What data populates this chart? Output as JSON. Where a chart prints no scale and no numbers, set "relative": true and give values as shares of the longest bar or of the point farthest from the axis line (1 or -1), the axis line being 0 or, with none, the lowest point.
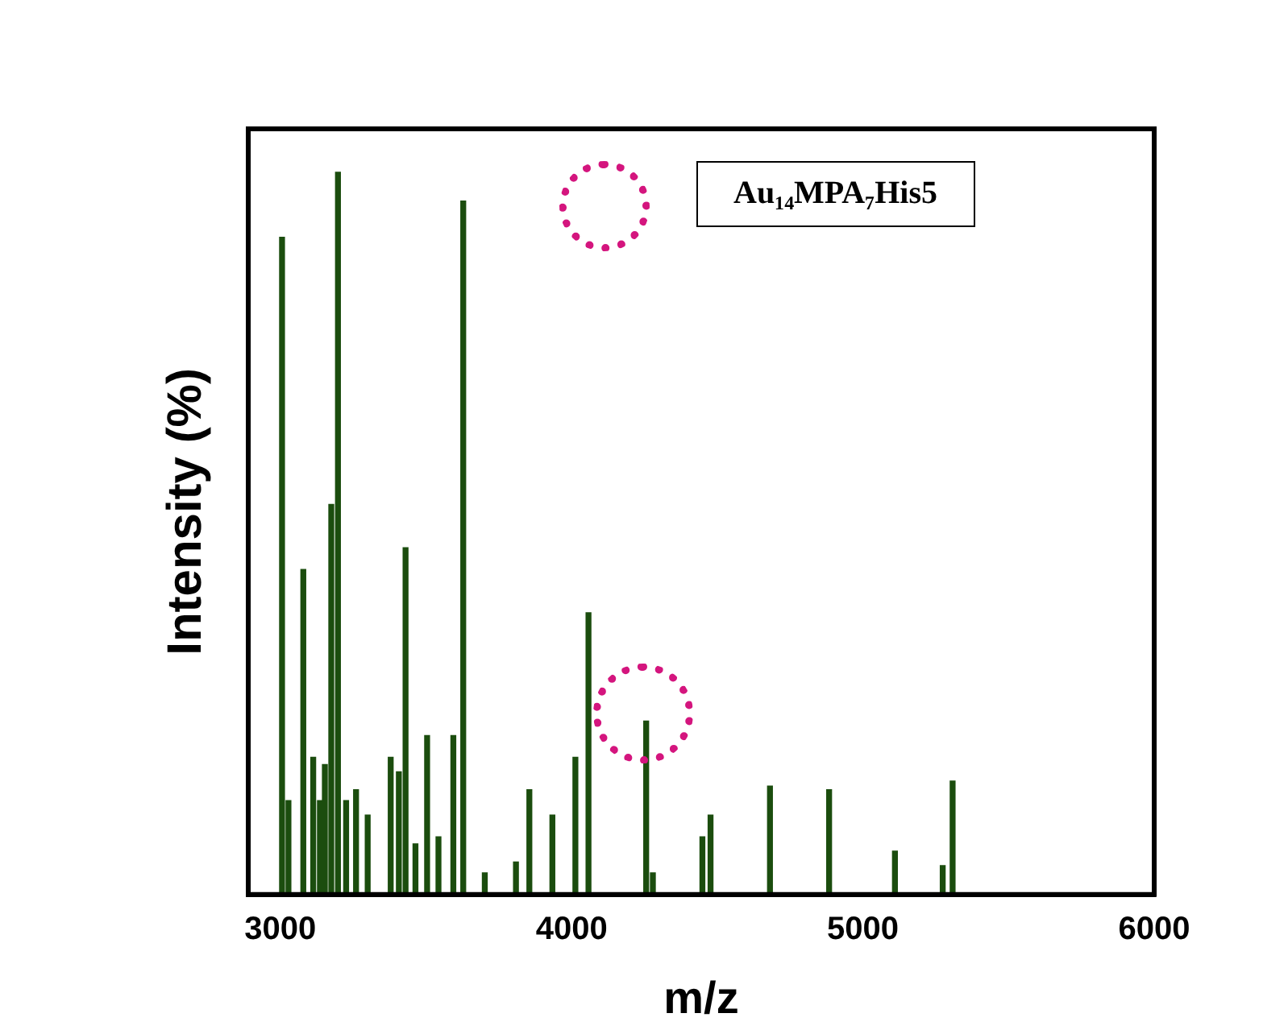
{
  "chart_data": {
    "type": "bar",
    "relative": true,
    "xlabel": "m/z",
    "ylabel": "Intensity (%)",
    "annotations": [
      "Au₁₄MPA₇His5"
    ],
    "xlim": [
      2890,
      6000
    ],
    "xticks": [
      3000,
      4000,
      5000,
      6000
    ],
    "x": [
      3006,
      3028,
      3079,
      3113,
      3136,
      3153,
      3175,
      3198,
      3226,
      3260,
      3300,
      3379,
      3407,
      3430,
      3464,
      3504,
      3543,
      3594,
      3628,
      3702,
      3809,
      3855,
      3934,
      4013,
      4058,
      4256,
      4279,
      4449,
      4477,
      4681,
      4884,
      5110,
      5274,
      5308
    ],
    "values": [
      0.91,
      0.13,
      0.45,
      0.19,
      0.13,
      0.18,
      0.54,
      1,
      0.13,
      0.145,
      0.11,
      0.19,
      0.17,
      0.48,
      0.07,
      0.22,
      0.08,
      0.22,
      0.96,
      0.03,
      0.045,
      0.145,
      0.11,
      0.19,
      0.39,
      0.24,
      0.03,
      0.08,
      0.11,
      0.15,
      0.145,
      0.06,
      0.04,
      0.157
    ],
    "color": "#1b4d0e",
    "grid": false,
    "legend": false
  }
}
